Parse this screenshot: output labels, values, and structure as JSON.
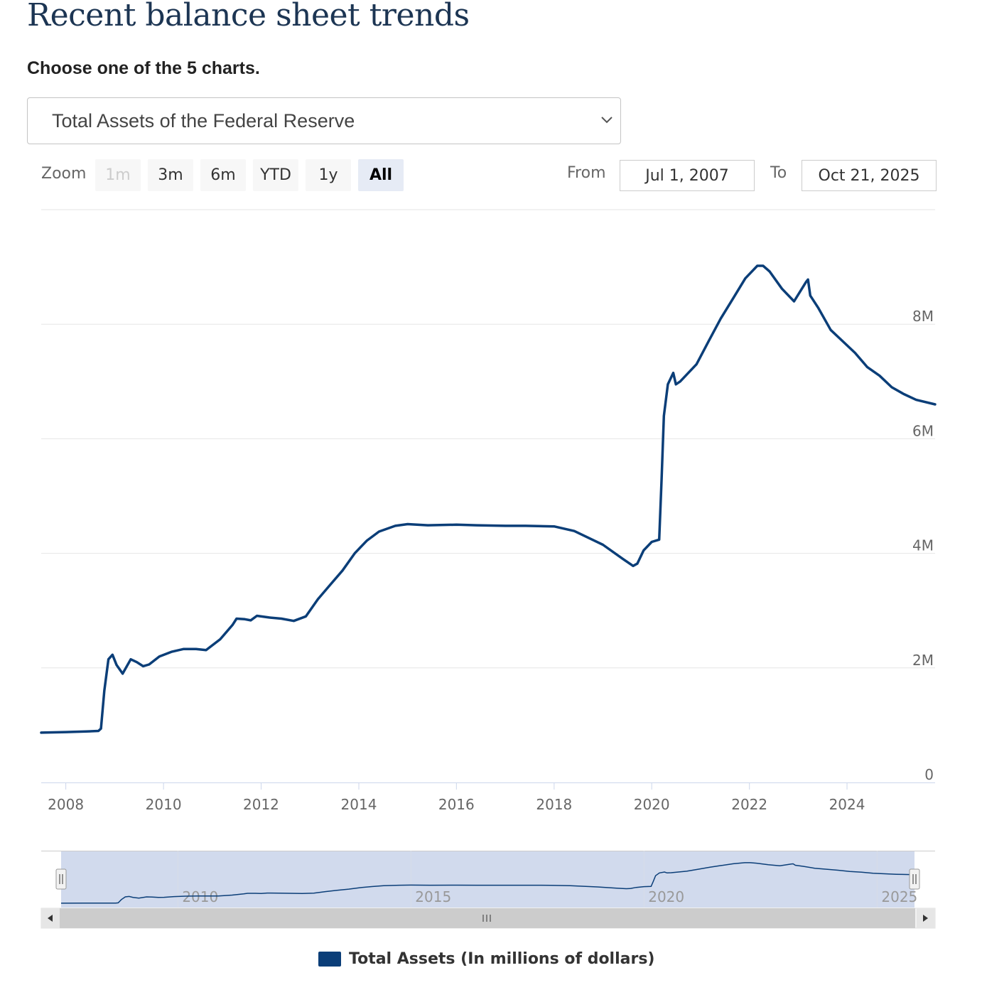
{
  "header": {
    "title": "Recent balance sheet trends",
    "subtitle": "Choose one of the 5 charts."
  },
  "selector": {
    "value": "Total Assets of the Federal Reserve",
    "icon": "chevron-down-icon"
  },
  "zoom": {
    "label": "Zoom",
    "buttons": [
      {
        "label": "1m",
        "state": "disabled"
      },
      {
        "label": "3m",
        "state": "normal"
      },
      {
        "label": "6m",
        "state": "normal"
      },
      {
        "label": "YTD",
        "state": "normal"
      },
      {
        "label": "1y",
        "state": "normal"
      },
      {
        "label": "All",
        "state": "active"
      }
    ]
  },
  "range": {
    "from_label": "From",
    "from_value": "Jul 1, 2007",
    "to_label": "To",
    "to_value": "Oct 21, 2025"
  },
  "chart_data": {
    "type": "line",
    "title": "",
    "xlabel": "",
    "ylabel": "",
    "xlim": [
      "2007-07-01",
      "2025-10-21"
    ],
    "ylim": [
      0,
      10000000
    ],
    "yticks": [
      0,
      2000000,
      4000000,
      6000000,
      8000000
    ],
    "ytick_labels": [
      "0",
      "2M",
      "4M",
      "6M",
      "8M"
    ],
    "xticks": [
      "2008",
      "2010",
      "2012",
      "2014",
      "2016",
      "2018",
      "2020",
      "2022",
      "2024"
    ],
    "grid": true,
    "legend": "bottom-center",
    "series": [
      {
        "name": "Total Assets (In millions of dollars)",
        "color": "#0b3e78",
        "x": [
          "2007-07-01",
          "2008-01-01",
          "2008-06-01",
          "2008-09-01",
          "2008-09-20",
          "2008-10-15",
          "2008-11-15",
          "2008-12-15",
          "2009-01-15",
          "2009-03-01",
          "2009-05-01",
          "2009-06-15",
          "2009-08-01",
          "2009-09-15",
          "2009-12-01",
          "2010-03-01",
          "2010-06-01",
          "2010-09-01",
          "2010-11-15",
          "2011-03-01",
          "2011-06-01",
          "2011-07-01",
          "2011-09-01",
          "2011-10-15",
          "2011-12-01",
          "2012-03-01",
          "2012-06-01",
          "2012-09-01",
          "2012-12-01",
          "2013-03-01",
          "2013-06-01",
          "2013-09-01",
          "2013-12-01",
          "2014-03-01",
          "2014-06-01",
          "2014-10-01",
          "2015-01-01",
          "2015-06-01",
          "2016-01-01",
          "2016-06-01",
          "2017-01-01",
          "2017-06-01",
          "2018-01-01",
          "2018-06-01",
          "2019-01-01",
          "2019-06-01",
          "2019-08-15",
          "2019-09-15",
          "2019-11-01",
          "2020-01-01",
          "2020-02-26",
          "2020-03-15",
          "2020-04-01",
          "2020-05-01",
          "2020-06-10",
          "2020-06-30",
          "2020-08-01",
          "2020-12-01",
          "2021-03-01",
          "2021-06-01",
          "2021-09-01",
          "2021-12-01",
          "2022-03-01",
          "2022-04-13",
          "2022-06-01",
          "2022-09-01",
          "2022-12-01",
          "2023-03-01",
          "2023-03-15",
          "2023-04-01",
          "2023-06-01",
          "2023-09-01",
          "2023-12-01",
          "2024-03-01",
          "2024-06-01",
          "2024-09-01",
          "2024-12-01",
          "2025-03-01",
          "2025-06-01",
          "2025-10-21"
        ],
        "y": [
          870000,
          880000,
          890000,
          900000,
          940000,
          1600000,
          2150000,
          2230000,
          2050000,
          1900000,
          2150000,
          2100000,
          2030000,
          2060000,
          2200000,
          2280000,
          2330000,
          2330000,
          2310000,
          2500000,
          2750000,
          2860000,
          2850000,
          2830000,
          2910000,
          2880000,
          2860000,
          2820000,
          2900000,
          3200000,
          3450000,
          3700000,
          4000000,
          4220000,
          4380000,
          4480000,
          4510000,
          4490000,
          4500000,
          4490000,
          4480000,
          4480000,
          4470000,
          4390000,
          4150000,
          3900000,
          3780000,
          3820000,
          4050000,
          4200000,
          4240000,
          5300000,
          6400000,
          6950000,
          7150000,
          6950000,
          7000000,
          7300000,
          7700000,
          8100000,
          8450000,
          8800000,
          9020000,
          9020000,
          8920000,
          8620000,
          8400000,
          8740000,
          8780000,
          8500000,
          8280000,
          7900000,
          7700000,
          7500000,
          7250000,
          7100000,
          6900000,
          6780000,
          6680000,
          6600000
        ]
      }
    ]
  },
  "navigator": {
    "ticks": [
      "2010",
      "2015",
      "2020",
      "2025"
    ]
  },
  "legend": {
    "label": "Total Assets (In millions of dollars)",
    "color": "#0b3e78"
  }
}
